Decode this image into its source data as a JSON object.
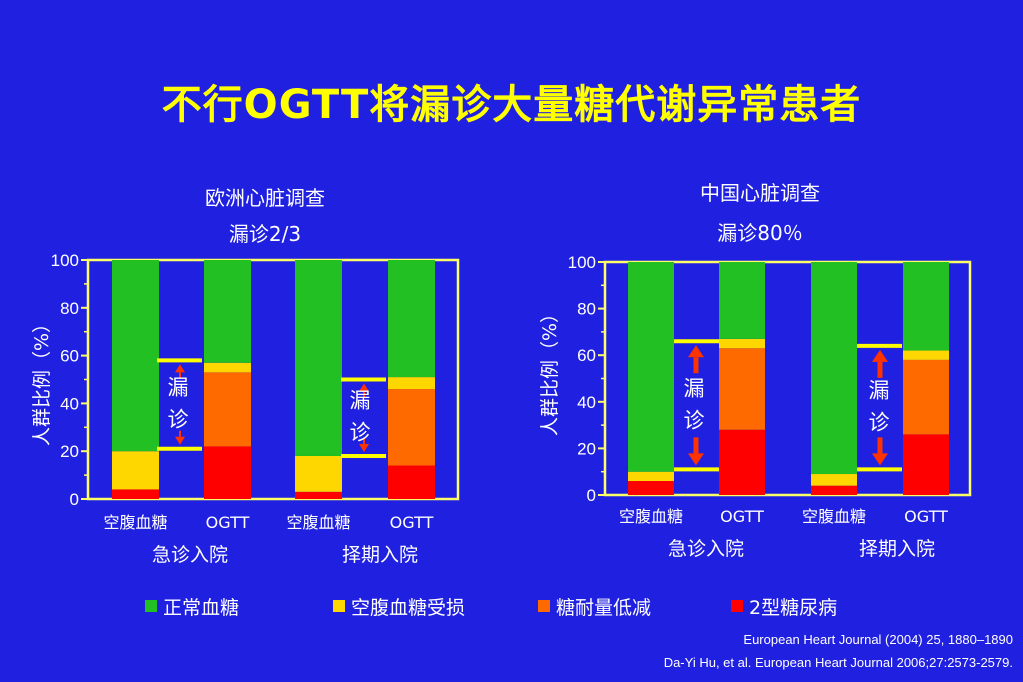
{
  "title": "不行OGTT将漏诊大量糖代谢异常患者",
  "colors": {
    "background": "#2020e0",
    "normal": "#22c022",
    "ifg": "#ffd700",
    "igt": "#ff6a00",
    "t2dm": "#ff0000",
    "axis": "#ffff66",
    "arrow": "#ff3300",
    "marker": "#ffff00"
  },
  "chart_data": [
    {
      "type": "bar",
      "stacked": true,
      "title": "欧洲心脏调查",
      "subtitle": "漏诊2/3",
      "ylabel": "人群比例（%）",
      "ylim": [
        0,
        100
      ],
      "yticks": [
        "0",
        "20",
        "40",
        "60",
        "80",
        "100"
      ],
      "categories": [
        "空腹血糖",
        "OGTT",
        "空腹血糖",
        "OGTT"
      ],
      "groups": [
        "急诊入院",
        "择期入院"
      ],
      "series": [
        {
          "name": "2型糖尿病",
          "values": [
            4,
            22,
            3,
            14
          ]
        },
        {
          "name": "糖耐量低减",
          "values": [
            0,
            31,
            0,
            32
          ]
        },
        {
          "name": "空腹血糖受损",
          "values": [
            16,
            4,
            15,
            5
          ]
        },
        {
          "name": "正常血糖",
          "values": [
            80,
            43,
            82,
            49
          ]
        }
      ],
      "annotations": [
        {
          "text": "漏诊",
          "from": 21,
          "to": 58
        },
        {
          "text": "漏诊",
          "from": 18,
          "to": 50
        }
      ]
    },
    {
      "type": "bar",
      "stacked": true,
      "title": "中国心脏调查",
      "subtitle": "漏诊80％",
      "ylabel": "人群比例（%）",
      "ylim": [
        0,
        100
      ],
      "yticks": [
        "0",
        "20",
        "40",
        "60",
        "80",
        "100"
      ],
      "categories": [
        "空腹血糖",
        "OGTT",
        "空腹血糖",
        "OGTT"
      ],
      "groups": [
        "急诊入院",
        "择期入院"
      ],
      "series": [
        {
          "name": "2型糖尿病",
          "values": [
            6,
            28,
            4,
            26
          ]
        },
        {
          "name": "糖耐量低减",
          "values": [
            0,
            35,
            0,
            32
          ]
        },
        {
          "name": "空腹血糖受损",
          "values": [
            4,
            4,
            5,
            4
          ]
        },
        {
          "name": "正常血糖",
          "values": [
            90,
            33,
            91,
            38
          ]
        }
      ],
      "annotations": [
        {
          "text": "漏诊",
          "from": 11,
          "to": 66
        },
        {
          "text": "漏诊",
          "from": 11,
          "to": 64
        }
      ]
    }
  ],
  "legend": [
    {
      "label": "正常血糖",
      "color": "#22c022"
    },
    {
      "label": "空腹血糖受损",
      "color": "#ffd700"
    },
    {
      "label": "糖耐量低减",
      "color": "#ff6a00"
    },
    {
      "label": "2型糖尿病",
      "color": "#ff0000"
    }
  ],
  "references": [
    "European Heart Journal (2004) 25, 1880–1890",
    "Da-Yi Hu, et al. European Heart Journal 2006;27:2573-2579."
  ]
}
